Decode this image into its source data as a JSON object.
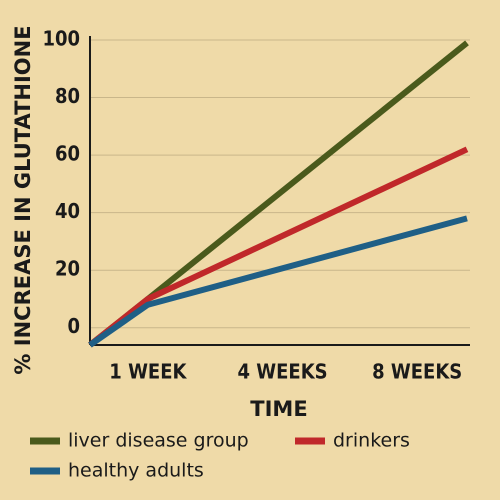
{
  "chart_data": {
    "type": "line",
    "x_label": "TIME",
    "y_label": "% INCREASE IN GLUTATHIONE",
    "x": [
      0.57,
      1,
      3.37
    ],
    "xlim": [
      0.57,
      3.37
    ],
    "xticks": [
      {
        "value": 1,
        "label": "1 WEEK"
      },
      {
        "value": 2,
        "label": "4 WEEKS"
      },
      {
        "value": 3,
        "label": "8 WEEKS"
      }
    ],
    "ylim": [
      -6,
      100
    ],
    "yticks": [
      0,
      20,
      40,
      60,
      80,
      100
    ],
    "grid": true,
    "series": [
      {
        "name": "liver disease group",
        "color": "#4a5a1c",
        "values": [
          -6,
          10,
          99
        ]
      },
      {
        "name": "drinkers",
        "color": "#c0282a",
        "values": [
          -6,
          10,
          62
        ]
      },
      {
        "name": "healthy adults",
        "color": "#1f5f86",
        "values": [
          -6,
          8,
          38
        ]
      }
    ]
  }
}
